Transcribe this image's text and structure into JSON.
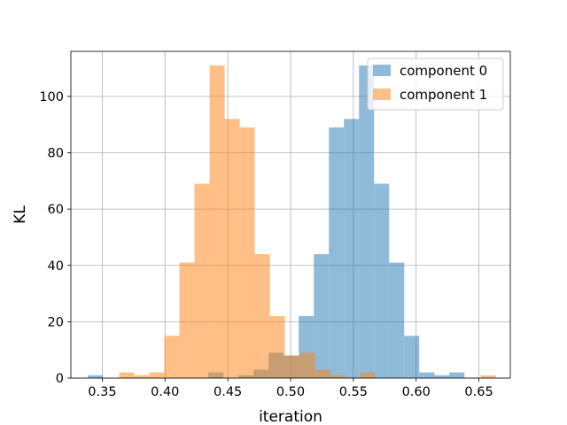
{
  "chart_data": {
    "type": "histogram",
    "title": "",
    "xlabel": "iteration",
    "ylabel": "KL",
    "xlim": [
      0.325,
      0.675
    ],
    "ylim": [
      0,
      116
    ],
    "xticks": [
      0.35,
      0.4,
      0.45,
      0.5,
      0.55,
      0.6,
      0.65
    ],
    "xtick_labels": [
      "0.35",
      "0.40",
      "0.45",
      "0.50",
      "0.55",
      "0.60",
      "0.65"
    ],
    "yticks": [
      0,
      20,
      40,
      60,
      80,
      100
    ],
    "ytick_labels": [
      "0",
      "20",
      "40",
      "60",
      "80",
      "100"
    ],
    "grid": true,
    "legend_position": "top-right",
    "series": [
      {
        "name": "component 0",
        "color": "#1f77b4",
        "alpha": 0.5,
        "bins": [
          {
            "x0": 0.3385,
            "x1": 0.3505,
            "count": 1
          },
          {
            "x0": 0.3505,
            "x1": 0.3625,
            "count": 0
          },
          {
            "x0": 0.3625,
            "x1": 0.3745,
            "count": 0
          },
          {
            "x0": 0.3745,
            "x1": 0.3865,
            "count": 0
          },
          {
            "x0": 0.3865,
            "x1": 0.3985,
            "count": 0
          },
          {
            "x0": 0.3985,
            "x1": 0.4105,
            "count": 0
          },
          {
            "x0": 0.4105,
            "x1": 0.4225,
            "count": 0
          },
          {
            "x0": 0.4225,
            "x1": 0.4345,
            "count": 0
          },
          {
            "x0": 0.4345,
            "x1": 0.4465,
            "count": 2
          },
          {
            "x0": 0.4465,
            "x1": 0.4585,
            "count": 0
          },
          {
            "x0": 0.4585,
            "x1": 0.4705,
            "count": 1
          },
          {
            "x0": 0.4705,
            "x1": 0.4825,
            "count": 3
          },
          {
            "x0": 0.4825,
            "x1": 0.4945,
            "count": 9
          },
          {
            "x0": 0.4945,
            "x1": 0.5065,
            "count": 8
          },
          {
            "x0": 0.5065,
            "x1": 0.5185,
            "count": 22
          },
          {
            "x0": 0.5185,
            "x1": 0.5305,
            "count": 44
          },
          {
            "x0": 0.5305,
            "x1": 0.5425,
            "count": 89
          },
          {
            "x0": 0.5425,
            "x1": 0.5545,
            "count": 92
          },
          {
            "x0": 0.5545,
            "x1": 0.5665,
            "count": 111
          },
          {
            "x0": 0.5665,
            "x1": 0.5785,
            "count": 69
          },
          {
            "x0": 0.5785,
            "x1": 0.5905,
            "count": 41
          },
          {
            "x0": 0.5905,
            "x1": 0.6025,
            "count": 15
          },
          {
            "x0": 0.6025,
            "x1": 0.6145,
            "count": 2
          },
          {
            "x0": 0.6145,
            "x1": 0.6265,
            "count": 1
          },
          {
            "x0": 0.6265,
            "x1": 0.6385,
            "count": 2
          }
        ]
      },
      {
        "name": "component 1",
        "color": "#ff7f0e",
        "alpha": 0.5,
        "bins": [
          {
            "x0": 0.3635,
            "x1": 0.3755,
            "count": 2
          },
          {
            "x0": 0.3755,
            "x1": 0.3875,
            "count": 1
          },
          {
            "x0": 0.3875,
            "x1": 0.3995,
            "count": 2
          },
          {
            "x0": 0.3995,
            "x1": 0.4115,
            "count": 15
          },
          {
            "x0": 0.4115,
            "x1": 0.4235,
            "count": 41
          },
          {
            "x0": 0.4235,
            "x1": 0.4355,
            "count": 69
          },
          {
            "x0": 0.4355,
            "x1": 0.4475,
            "count": 111
          },
          {
            "x0": 0.4475,
            "x1": 0.4595,
            "count": 92
          },
          {
            "x0": 0.4595,
            "x1": 0.4715,
            "count": 89
          },
          {
            "x0": 0.4715,
            "x1": 0.4835,
            "count": 44
          },
          {
            "x0": 0.4835,
            "x1": 0.4955,
            "count": 22
          },
          {
            "x0": 0.4955,
            "x1": 0.5075,
            "count": 8
          },
          {
            "x0": 0.5075,
            "x1": 0.5195,
            "count": 9
          },
          {
            "x0": 0.5195,
            "x1": 0.5315,
            "count": 3
          },
          {
            "x0": 0.5315,
            "x1": 0.5435,
            "count": 1
          },
          {
            "x0": 0.5435,
            "x1": 0.5555,
            "count": 0
          },
          {
            "x0": 0.5555,
            "x1": 0.5675,
            "count": 2
          },
          {
            "x0": 0.5675,
            "x1": 0.5795,
            "count": 0
          },
          {
            "x0": 0.5795,
            "x1": 0.5915,
            "count": 0
          },
          {
            "x0": 0.5915,
            "x1": 0.6035,
            "count": 0
          },
          {
            "x0": 0.6035,
            "x1": 0.6155,
            "count": 0
          },
          {
            "x0": 0.6155,
            "x1": 0.6275,
            "count": 0
          },
          {
            "x0": 0.6275,
            "x1": 0.6395,
            "count": 0
          },
          {
            "x0": 0.6395,
            "x1": 0.6515,
            "count": 0
          },
          {
            "x0": 0.6515,
            "x1": 0.6635,
            "count": 1
          }
        ]
      }
    ]
  }
}
